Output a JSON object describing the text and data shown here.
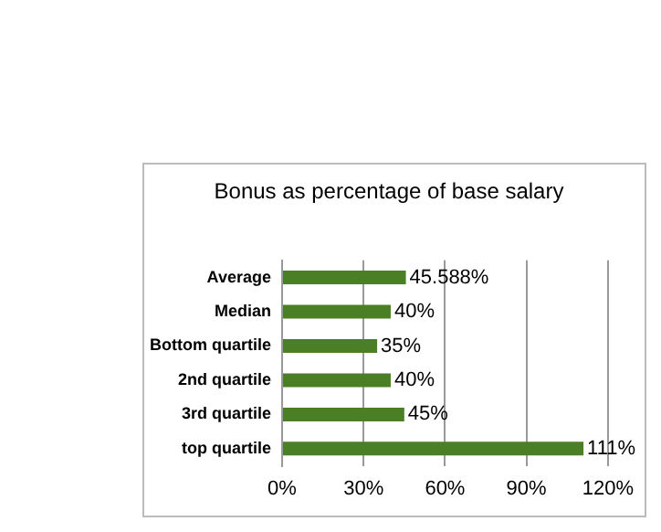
{
  "chart_data": {
    "type": "bar",
    "orientation": "horizontal",
    "title": "Bonus as percentage of base salary",
    "categories": [
      "Average",
      "Median",
      "Bottom quartile",
      "2nd quartile",
      "3rd quartile",
      "top quartile"
    ],
    "values": [
      45.588,
      40,
      35,
      40,
      45,
      111
    ],
    "value_labels": [
      "45.588%",
      "40%",
      "35%",
      "40%",
      "45%",
      "111%"
    ],
    "color": "#4a7f25",
    "xlim": [
      0,
      120
    ],
    "xticks": [
      {
        "value": 0,
        "label": "0%"
      },
      {
        "value": 30,
        "label": "30%"
      },
      {
        "value": 60,
        "label": "60%"
      },
      {
        "value": 90,
        "label": "90%"
      },
      {
        "value": 120,
        "label": "120%"
      }
    ],
    "grid": "x",
    "legend": false
  }
}
